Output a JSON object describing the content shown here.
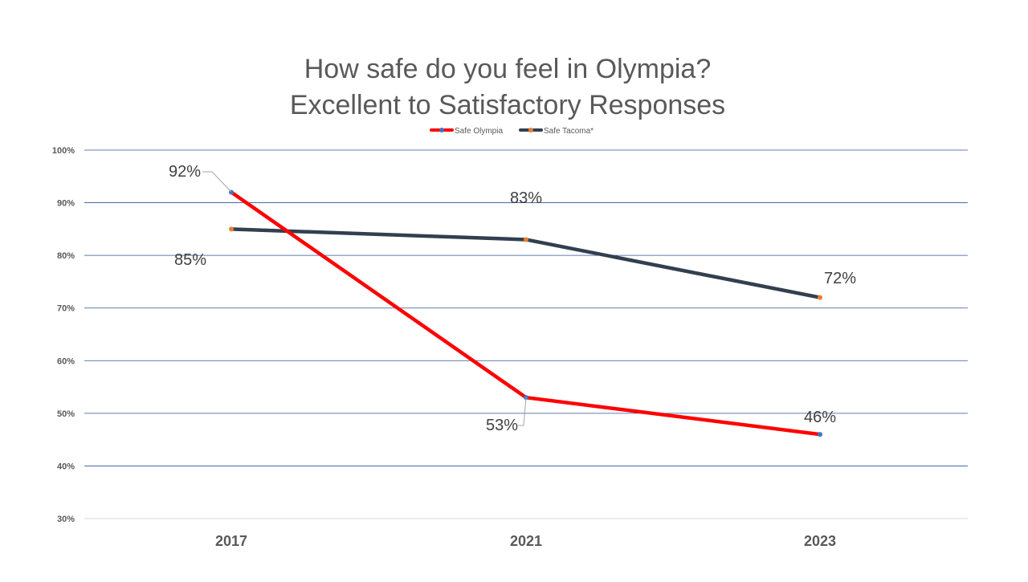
{
  "chart_data": {
    "type": "line",
    "title_lines": [
      "How safe do you feel in Olympia?",
      "Excellent to Satisfactory Responses"
    ],
    "categories": [
      "2017",
      "2021",
      "2023"
    ],
    "ylim": [
      0.3,
      1.0
    ],
    "yticks": [
      0.3,
      0.4,
      0.5,
      0.6,
      0.7,
      0.8,
      0.9,
      1.0
    ],
    "ytick_labels": [
      "30%",
      "40%",
      "50%",
      "60%",
      "70%",
      "80%",
      "90%",
      "100%"
    ],
    "grid": true,
    "legend_position": "top-center",
    "series": [
      {
        "name": "Safe Olympia",
        "values": [
          0.92,
          0.53,
          0.46
        ],
        "labels": [
          "92%",
          "53%",
          "46%"
        ],
        "line_color": "#ff0000",
        "marker_color": "#4472c4"
      },
      {
        "name": "Safe Tacoma*",
        "values": [
          0.85,
          0.83,
          0.72
        ],
        "labels": [
          "85%",
          "83%",
          "72%"
        ],
        "line_color": "#323f4f",
        "marker_color": "#ed7d31"
      }
    ],
    "colors": {
      "gridline": "#2e5597",
      "axis": "#d9d9d9",
      "text": "#595959",
      "leader_line": "#a6a6a6"
    }
  }
}
